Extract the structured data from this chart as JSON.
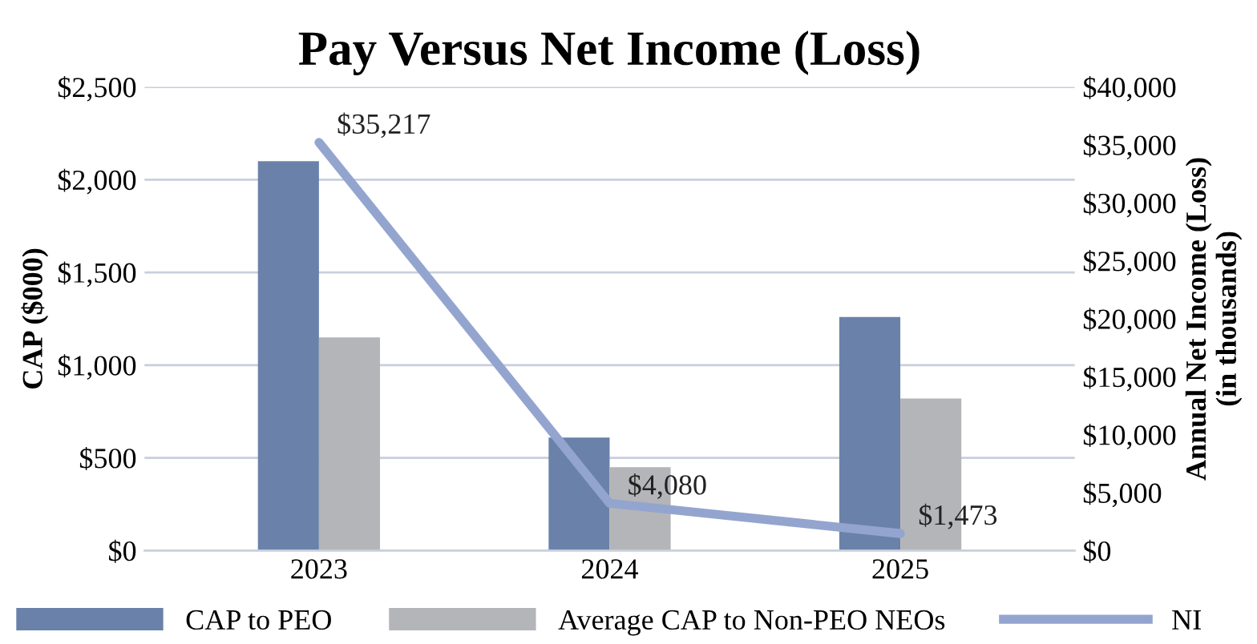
{
  "chart_data": {
    "type": "bar",
    "title": "Pay Versus Net Income (Loss)",
    "ylabel": "CAP ($000)",
    "y2label": "Annual Net Income (Loss)\n(in thousands)",
    "categories": [
      "2023",
      "2024",
      "2025"
    ],
    "series": [
      {
        "name": "CAP to PEO",
        "color": "#6a82aa",
        "values": [
          2100,
          610,
          1260
        ]
      },
      {
        "name": "Average CAP to Non-PEO NEOs",
        "color": "#b4b5b8",
        "values": [
          1150,
          450,
          820
        ]
      },
      {
        "name": "NI",
        "type": "line",
        "axis": "y2",
        "color": "#93a5cf",
        "values": [
          35217,
          4080,
          1473
        ],
        "value_labels": [
          "$35,217",
          "$4,080",
          "$1,473"
        ]
      }
    ],
    "ylim": [
      0,
      2500
    ],
    "yticks": [
      {
        "value": 0,
        "label": "$0"
      },
      {
        "value": 500,
        "label": "$500"
      },
      {
        "value": 1000,
        "label": "$1,000"
      },
      {
        "value": 1500,
        "label": "$1,500"
      },
      {
        "value": 2000,
        "label": "$2,000"
      },
      {
        "value": 2500,
        "label": "$2,500"
      }
    ],
    "y2lim": [
      0,
      40000
    ],
    "y2ticks": [
      {
        "value": 0,
        "label": "$0"
      },
      {
        "value": 5000,
        "label": "$5,000"
      },
      {
        "value": 10000,
        "label": "$10,000"
      },
      {
        "value": 15000,
        "label": "$15,000"
      },
      {
        "value": 20000,
        "label": "$20,000"
      },
      {
        "value": 25000,
        "label": "$25,000"
      },
      {
        "value": 30000,
        "label": "$30,000"
      },
      {
        "value": 35000,
        "label": "$35,000"
      },
      {
        "value": 40000,
        "label": "$40,000"
      }
    ],
    "grid": "y",
    "legend": "bottom"
  }
}
